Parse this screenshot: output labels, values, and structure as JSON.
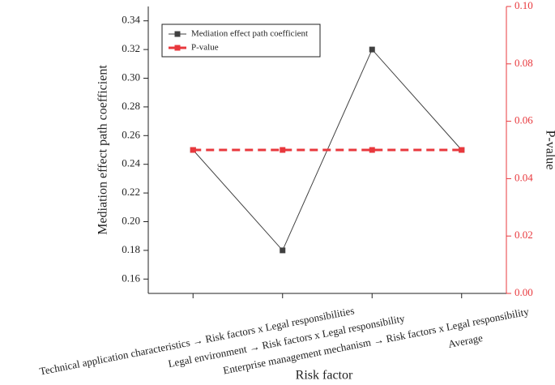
{
  "chart_data": {
    "type": "line",
    "xlabel": "Risk factor",
    "ylabel": "Mediation effect path coefficient",
    "y2label": "P-value",
    "categories": [
      "Technical application characteristics → Risk factors x Legal responsibilities",
      "Legal environment → Risk factors x Legal responsibility",
      "Enterprise management mechanism → Risk factors x Legal responsibility",
      "Average"
    ],
    "series": [
      {
        "name": "Mediation effect path coefficient",
        "color": "#404040",
        "linestyle": "solid",
        "values": [
          0.25,
          0.18,
          0.32,
          0.25
        ]
      },
      {
        "name": "P-value",
        "color": "#e8383d",
        "linestyle": "dashed",
        "axis": "y2",
        "values": [
          0.05,
          0.05,
          0.05,
          0.05
        ]
      }
    ],
    "ylim": [
      0.15,
      0.35
    ],
    "yticks": [
      0.16,
      0.18,
      {
        "value": 0.2,
        "label": "0.20"
      },
      0.22,
      0.24,
      0.26,
      0.28,
      {
        "value": 0.3,
        "label": "0.30"
      },
      0.32,
      0.34
    ],
    "y2lim": [
      0,
      0.1
    ],
    "y2ticks": [
      {
        "value": 0,
        "label": "0.00"
      },
      0.02,
      0.04,
      0.06,
      0.08,
      {
        "value": 0.1,
        "label": "0.10"
      }
    ],
    "y2color": "#e8383d",
    "legend": "top-left"
  }
}
